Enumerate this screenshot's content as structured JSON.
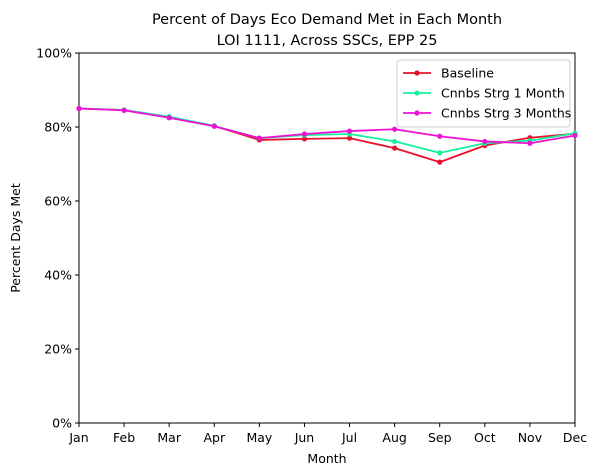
{
  "chart_data": {
    "type": "line",
    "title_line1": "Percent of Days Eco Demand Met in Each Month",
    "title_line2": "LOI 1111, Across SSCs, EPP 25",
    "xlabel": "Month",
    "ylabel": "Percent Days Met",
    "categories": [
      "Jan",
      "Feb",
      "Mar",
      "Apr",
      "May",
      "Jun",
      "Jul",
      "Aug",
      "Sep",
      "Oct",
      "Nov",
      "Dec"
    ],
    "ylim": [
      0,
      100
    ],
    "yticks": [
      0,
      20,
      40,
      60,
      80,
      100
    ],
    "ytick_labels": [
      "0%",
      "20%",
      "40%",
      "60%",
      "80%",
      "100%"
    ],
    "legend_position": "top-right",
    "grid": false,
    "series": [
      {
        "name": "Baseline",
        "color": "#e8102a",
        "values": [
          85.0,
          84.6,
          82.6,
          80.3,
          76.5,
          76.8,
          77.0,
          74.3,
          70.5,
          75.0,
          77.1,
          78.2
        ]
      },
      {
        "name": "Cnnbs Strg 1 Month",
        "color": "#17f09a",
        "values": [
          85.0,
          84.6,
          82.8,
          80.3,
          77.0,
          77.8,
          78.1,
          76.1,
          73.0,
          75.6,
          76.3,
          78.3
        ]
      },
      {
        "name": "Cnnbs Strg 3 Months",
        "color": "#f010d6",
        "values": [
          85.0,
          84.5,
          82.5,
          80.2,
          77.0,
          78.1,
          78.9,
          79.4,
          77.5,
          76.1,
          75.6,
          77.7
        ]
      }
    ]
  }
}
